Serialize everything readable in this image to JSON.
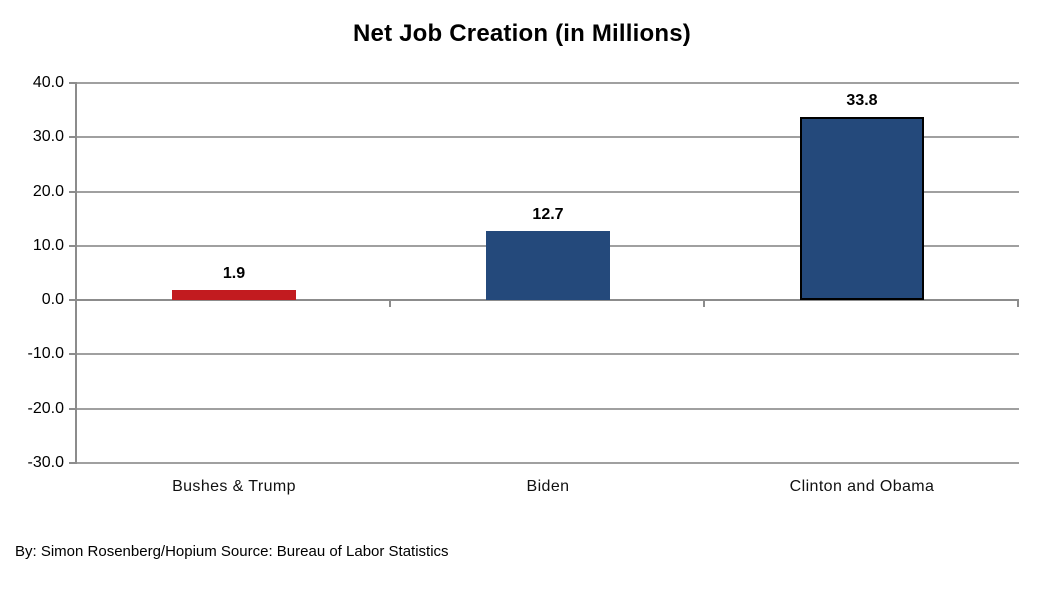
{
  "chart_data": {
    "type": "bar",
    "title": "Net Job Creation (in Millions)",
    "categories": [
      "Bushes & Trump",
      "Biden",
      "Clinton and Obama"
    ],
    "values": [
      1.9,
      12.7,
      33.8
    ],
    "value_labels": [
      "1.9",
      "12.7",
      "33.8"
    ],
    "bar_colors": [
      "#C21B1F",
      "#24497B",
      "#24497B"
    ],
    "bar_border_colors": [
      null,
      null,
      "#000000"
    ],
    "ylim": [
      -30,
      40
    ],
    "yticks": [
      40,
      30,
      20,
      10,
      0,
      -10,
      -20,
      -30
    ],
    "ytick_labels": [
      "40.0",
      "30.0",
      "20.0",
      "10.0",
      "0.0",
      "-10.0",
      "-20.0",
      "-30.0"
    ],
    "xlabel": "",
    "ylabel": "",
    "grid": "horizontal",
    "legend": "none",
    "gridline_color": "#A0A0A0",
    "axis_color": "#8C8C8C"
  },
  "footer": {
    "credit": "By: Simon Rosenberg/Hopium Source: Bureau of Labor Statistics"
  }
}
